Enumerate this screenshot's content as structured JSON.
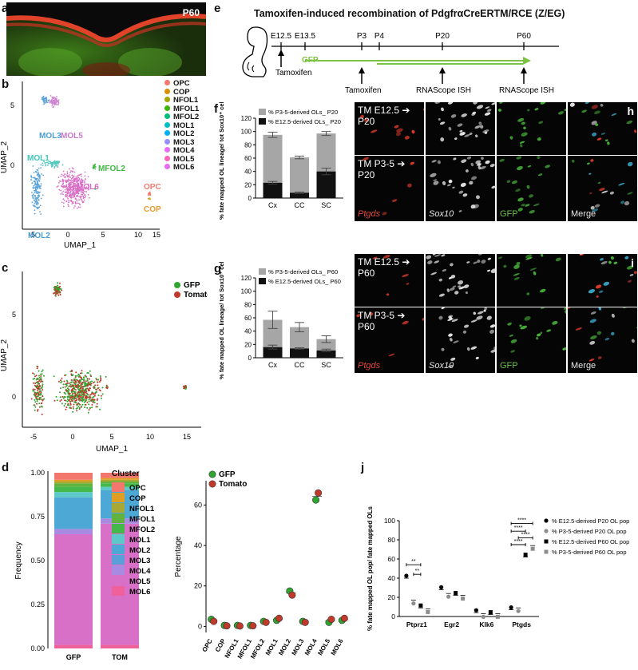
{
  "panels": {
    "a": {
      "label": "a",
      "age": "P60"
    },
    "b": {
      "label": "b",
      "xlabel": "UMAP_1",
      "ylabel": "UMAP_2",
      "cluster_labels": [
        {
          "text": "MOL3",
          "color": "#4a9fd4"
        },
        {
          "text": "MOL5",
          "color": "#c978c9"
        },
        {
          "text": "MOL1",
          "color": "#3fc6b7"
        },
        {
          "text": "MFOL2",
          "color": "#3fb843"
        },
        {
          "text": "MOL6",
          "color": "#d965c4"
        },
        {
          "text": "OPC",
          "color": "#f47c74"
        },
        {
          "text": "COP",
          "color": "#e59a2c"
        },
        {
          "text": "MOL2",
          "color": "#4a9fd4"
        }
      ],
      "legend": [
        {
          "name": "OPC",
          "color": "#f8766d"
        },
        {
          "name": "COP",
          "color": "#d89000"
        },
        {
          "name": "NFOL1",
          "color": "#a3a500"
        },
        {
          "name": "MFOL1",
          "color": "#39b600"
        },
        {
          "name": "MFOL2",
          "color": "#00bf7d"
        },
        {
          "name": "MOL1",
          "color": "#00bfc4"
        },
        {
          "name": "MOL2",
          "color": "#00b0f6"
        },
        {
          "name": "MOL3",
          "color": "#9590ff"
        },
        {
          "name": "MOL4",
          "color": "#e76bf3"
        },
        {
          "name": "MOL5",
          "color": "#ff62bc"
        },
        {
          "name": "MOL6",
          "color": "#e76bf3"
        }
      ],
      "xticks": [
        "-5",
        "0",
        "5",
        "10",
        "15"
      ],
      "yticks": [
        "0",
        "5"
      ]
    },
    "c": {
      "label": "c",
      "xlabel": "UMAP_1",
      "ylabel": "UMAP_2",
      "legend": [
        {
          "name": "GFP",
          "color": "#2fa52f"
        },
        {
          "name": "Tomato",
          "color": "#c0392b"
        }
      ],
      "xticks": [
        "-5",
        "0",
        "5",
        "10",
        "15"
      ],
      "yticks": [
        "0",
        "5"
      ]
    },
    "d": {
      "label": "d"
    },
    "e": {
      "label": "e",
      "title": "Tamoxifen-induced recombination of PdgfrαCreERTM/RCE (Z/EG)",
      "timepoints": [
        "E12.5",
        "E13.5",
        "P3",
        "P4",
        "P20",
        "P60"
      ],
      "gfp": "GFP",
      "tamoxifen1": "Tamoxifen",
      "tamoxifen2": "Tamoxifen",
      "ish1": "RNAScope ISH",
      "ish2": "RNAScope ISH"
    },
    "f": {
      "label": "f"
    },
    "g": {
      "label": "g"
    },
    "h": {
      "label": "h",
      "row1": "TM E12.5 ➔ P20",
      "row2": "TM P3-5 ➔ P20",
      "channels": [
        "Ptgds",
        "Sox10",
        "GFP",
        "Merge"
      ]
    },
    "i": {
      "label": "i",
      "row1": "TM E12.5 ➔ P60",
      "row2": "TM P3-5 ➔ P60",
      "channels": [
        "Ptgds",
        "Sox10",
        "GFP",
        "Merge"
      ]
    },
    "j": {
      "label": "j"
    }
  },
  "chart_data": [
    {
      "id": "d-stacked",
      "type": "bar",
      "categories": [
        "GFP",
        "TOM"
      ],
      "xlabel": "",
      "ylabel": "Frequency",
      "legend_title": "Cluster",
      "yticks": [
        "0.00",
        "0.25",
        "0.50",
        "0.75",
        "1.00"
      ],
      "ylim": [
        0,
        1
      ],
      "series": [
        {
          "name": "MOL6",
          "color": "#f0619b",
          "values": [
            0.02,
            0.02
          ]
        },
        {
          "name": "MOL5",
          "color": "#d870c7",
          "values": [
            0.63,
            0.69
          ]
        },
        {
          "name": "MOL4",
          "color": "#a88be0",
          "values": [
            0.03,
            0.03
          ]
        },
        {
          "name": "MOL3",
          "color": "#5a9fd8",
          "values": [
            0.0,
            0.0
          ]
        },
        {
          "name": "MOL2",
          "color": "#4ea8d6",
          "values": [
            0.18,
            0.16
          ]
        },
        {
          "name": "MOL1",
          "color": "#5cc8c8",
          "values": [
            0.03,
            0.02
          ]
        },
        {
          "name": "MFOL2",
          "color": "#45b84b",
          "values": [
            0.03,
            0.02
          ]
        },
        {
          "name": "MFOL1",
          "color": "#62b240",
          "values": [
            0.02,
            0.01
          ]
        },
        {
          "name": "NFOL1",
          "color": "#a8a834",
          "values": [
            0.01,
            0.01
          ]
        },
        {
          "name": "COP",
          "color": "#e09e22",
          "values": [
            0.01,
            0.01
          ]
        },
        {
          "name": "OPC",
          "color": "#f4776e",
          "values": [
            0.04,
            0.03
          ]
        }
      ],
      "legend_order": [
        "OPC",
        "COP",
        "NFOL1",
        "MFOL1",
        "MFOL2",
        "MOL1",
        "MOL2",
        "MOL3",
        "MOL4",
        "MOL5",
        "MOL6"
      ]
    },
    {
      "id": "d-dots",
      "type": "scatter",
      "ylabel": "Percentage",
      "xlabel": "",
      "categories": [
        "OPC",
        "COP",
        "NFOL1",
        "MFOL1",
        "MFOL2",
        "MOL1",
        "MOL2",
        "MOL3",
        "MOL4",
        "MOL5",
        "MOL6"
      ],
      "yticks": [
        "0",
        "20",
        "40",
        "60"
      ],
      "ylim": [
        -3,
        72
      ],
      "series": [
        {
          "name": "GFP",
          "color": "#2fa52f",
          "values": [
            3.5,
            0.5,
            0.5,
            0.5,
            2.5,
            3.0,
            17.5,
            2.5,
            62.5,
            2.0,
            3.0
          ]
        },
        {
          "name": "Tomato",
          "color": "#c0392b",
          "values": [
            2.5,
            0.3,
            0.2,
            0.3,
            2.0,
            4.0,
            15.5,
            2.0,
            66.0,
            3.5,
            4.0
          ]
        }
      ]
    },
    {
      "id": "f-bars",
      "type": "bar",
      "ylabel": "% fate mapped OL lineage/ tot Sox10⁺ cells",
      "categories": [
        "Cx",
        "CC",
        "SC"
      ],
      "yticks": [
        "0",
        "20",
        "40",
        "60",
        "80",
        "100",
        "120"
      ],
      "ylim": [
        0,
        120
      ],
      "series": [
        {
          "name": "% E12.5-derived OLs_ P20",
          "color": "#111111",
          "values": [
            23,
            8,
            40
          ],
          "err": [
            2,
            1,
            5
          ]
        },
        {
          "name": "% P3-5-derived OLs_ P20",
          "color": "#a6a6a6",
          "values": [
            72,
            53,
            57
          ],
          "err": [
            4,
            2,
            3
          ]
        }
      ]
    },
    {
      "id": "g-bars",
      "type": "bar",
      "ylabel": "% fate mapped OL lineage/ tot Sox10⁺ cells",
      "categories": [
        "Cx",
        "CC",
        "SC"
      ],
      "yticks": [
        "0",
        "20",
        "40",
        "60",
        "80",
        "100",
        "120"
      ],
      "ylim": [
        0,
        120
      ],
      "series": [
        {
          "name": "% E12.5-derived OLs_ P60",
          "color": "#111111",
          "values": [
            16,
            14,
            11
          ],
          "err": [
            3,
            1,
            2
          ]
        },
        {
          "name": "% P3-5-derived OLs_ P60",
          "color": "#a6a6a6",
          "values": [
            41,
            32,
            17
          ],
          "err": [
            13,
            7,
            5
          ]
        }
      ]
    },
    {
      "id": "j-dots",
      "type": "scatter",
      "ylabel": "% fate mapped OL pop/ fate mapped OLs",
      "categories": [
        "Ptprz1",
        "Egr2",
        "Klk6",
        "Ptgds"
      ],
      "yticks": [
        "0",
        "20",
        "40",
        "60",
        "80",
        "100"
      ],
      "ylim": [
        0,
        100
      ],
      "series": [
        {
          "name": "% E12.5-derived P20 OL pop",
          "color": "#000000",
          "shape": "circle",
          "values": [
            40,
            28,
            4,
            7
          ]
        },
        {
          "name": "% P3-5-derived P20 OL pop",
          "color": "#8c8c8c",
          "shape": "circle",
          "values": [
            17,
            24,
            3,
            9
          ]
        },
        {
          "name": "% E12.5-derived P60 OL pop",
          "color": "#000000",
          "shape": "square",
          "values": [
            9,
            22,
            2,
            62
          ]
        },
        {
          "name": "% P3-5-derived P60 OL pop",
          "color": "#8c8c8c",
          "shape": "square",
          "values": [
            8,
            22,
            3,
            74
          ]
        }
      ],
      "significance": [
        "**",
        "**",
        "****",
        "****",
        "****",
        "****"
      ]
    }
  ]
}
